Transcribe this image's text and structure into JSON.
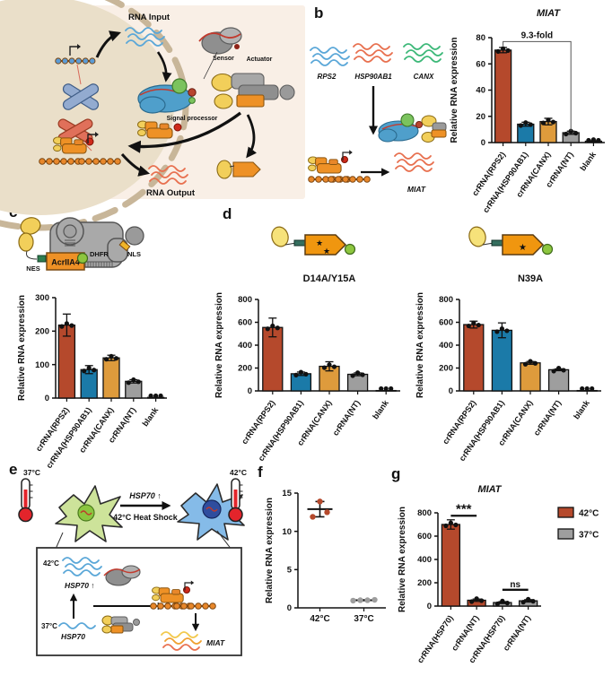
{
  "figure": {
    "panel_labels": {
      "a": "a",
      "b": "b",
      "c": "c",
      "d": "d",
      "e": "e",
      "f": "f",
      "g": "g"
    }
  },
  "colors": {
    "bar_red": "#b5492c",
    "bar_blue": "#1b7aa8",
    "bar_orange": "#de9b3c",
    "bar_gray": "#9e9e9e",
    "wave_blue": "#5aa7d8",
    "wave_red": "#e8704f",
    "wave_green": "#3cb878",
    "wave_yellow": "#f2c94c",
    "panel_a_bg": "#f9efe6",
    "machine_orange": "#ee9126",
    "blob_yellow": "#f2cf5a",
    "processor_blue": "#4f9fcb"
  },
  "panel_a": {
    "rna_input": "RNA Input",
    "sensor": "Sensor",
    "actuator": "Actuator",
    "signal_processor": "Signal processor",
    "rna_output": "RNA Output"
  },
  "panel_b_diagram": {
    "rps2": "RPS2",
    "hsp90ab1": "HSP90AB1",
    "canx": "CANX",
    "miat": "MIAT"
  },
  "panel_c_diagram": {
    "nes": "NES",
    "acriia4": "AcrIIA4",
    "dhfr": "DHFR",
    "nls": "NLS"
  },
  "panel_d_diagram": {
    "star_blue": "★",
    "star_red": "★",
    "star_green": "★"
  },
  "panel_e_diagram": {
    "temp_37": "37°C",
    "temp_42": "42°C",
    "hsp70_up": "HSP70 ↑",
    "heat_shock": "42°C Heat Shock",
    "box_42": "42°C",
    "box_37": "37°C",
    "box_hsp70_up": "HSP70 ↑",
    "box_hsp70": "HSP70",
    "miat": "MIAT"
  },
  "chart_data": [
    {
      "id": "chart-b",
      "type": "bar",
      "title": "MIAT",
      "title_italic": true,
      "ylabel": "Relative RNA expression",
      "ylim": [
        0,
        80
      ],
      "yticks": [
        0,
        20,
        40,
        60,
        80
      ],
      "categories": [
        "crRNA(RPS2)",
        "crRNA(HSP90AB1)",
        "crRNA(CANX)",
        "crRNA(NT)",
        "blank"
      ],
      "values": [
        70.5,
        14,
        16,
        7.5,
        1
      ],
      "errors": [
        2,
        1.5,
        2.5,
        1.2,
        0.4
      ],
      "bar_colors": [
        "#b5492c",
        "#1b7aa8",
        "#de9b3c",
        "#9e9e9e",
        "#9e9e9e"
      ],
      "fold_annotation": {
        "label": "9.3-fold",
        "from": 0,
        "to": 3,
        "y": 77
      }
    },
    {
      "id": "chart-c",
      "type": "bar",
      "title": "",
      "ylabel": "Relative RNA expression",
      "ylim": [
        0,
        300
      ],
      "yticks": [
        0,
        100,
        200,
        300
      ],
      "categories": [
        "crRNA(RPS2)",
        "crRNA(HSP90AB1)",
        "crRNA(CANX)",
        "crRNA(NT)",
        "blank"
      ],
      "values": [
        218,
        85,
        120,
        50,
        2
      ],
      "errors": [
        33,
        12,
        8,
        5,
        0
      ],
      "bar_colors": [
        "#b5492c",
        "#1b7aa8",
        "#de9b3c",
        "#9e9e9e",
        "#9e9e9e"
      ]
    },
    {
      "id": "chart-d1",
      "type": "bar",
      "title": "D14A/Y15A",
      "title_italic": false,
      "ylabel": "Relative RNA expression",
      "ylim": [
        0,
        800
      ],
      "yticks": [
        0,
        200,
        400,
        600,
        800
      ],
      "categories": [
        "crRNA(RPS2)",
        "crRNA(HSP90AB1)",
        "crRNA(CANX)",
        "crRNA(NT)",
        "blank"
      ],
      "values": [
        555,
        150,
        215,
        145,
        3
      ],
      "errors": [
        82,
        15,
        40,
        12,
        0
      ],
      "bar_colors": [
        "#b5492c",
        "#1b7aa8",
        "#de9b3c",
        "#9e9e9e",
        "#9e9e9e"
      ]
    },
    {
      "id": "chart-d2",
      "type": "bar",
      "title": "N39A",
      "title_italic": false,
      "ylabel": "Relative RNA expression",
      "ylim": [
        0,
        800
      ],
      "yticks": [
        0,
        200,
        400,
        600,
        800
      ],
      "categories": [
        "crRNA(RPS2)",
        "crRNA(HSP90AB1)",
        "crRNA(CANX)",
        "crRNA(NT)",
        "blank"
      ],
      "values": [
        580,
        530,
        245,
        185,
        3
      ],
      "errors": [
        30,
        65,
        12,
        8,
        0
      ],
      "bar_colors": [
        "#b5492c",
        "#1b7aa8",
        "#de9b3c",
        "#9e9e9e",
        "#9e9e9e"
      ]
    },
    {
      "id": "chart-f",
      "type": "scatter",
      "title": "",
      "ylabel": "Relative RNA expression",
      "ylim": [
        0,
        15
      ],
      "yticks": [
        0,
        5,
        10,
        15
      ],
      "categories": [
        "42°C",
        "37°C"
      ],
      "groups": [
        {
          "points": [
            11.9,
            13.9,
            12.5
          ],
          "mean": 12.9,
          "sd_low": 11.9,
          "sd_high": 13.9,
          "color": "#b5492c"
        },
        {
          "points": [
            0.95,
            1.0,
            1.0,
            1.05
          ],
          "mean": 1.0,
          "sd_low": 0.95,
          "sd_high": 1.05,
          "color": "#9e9e9e"
        }
      ]
    },
    {
      "id": "chart-g",
      "type": "bar",
      "title": "MIAT",
      "title_italic": true,
      "ylabel": "Relative RNA expression",
      "ylim": [
        0,
        800
      ],
      "yticks": [
        0,
        200,
        400,
        600,
        800
      ],
      "categories": [
        "crRNA(HSP70)",
        "crRNA(NT)",
        "crRNA(HSP70)",
        "crRNA(NT)"
      ],
      "values": [
        700,
        50,
        30,
        45
      ],
      "errors": [
        40,
        10,
        8,
        10
      ],
      "bar_colors": [
        "#b5492c",
        "#b5492c",
        "#9e9e9e",
        "#9e9e9e"
      ],
      "sig_annotations": [
        {
          "label": "***",
          "from": 0,
          "to": 1,
          "y": 775
        },
        {
          "label": "ns",
          "from": 2,
          "to": 3,
          "y": 140
        }
      ],
      "legend": [
        {
          "label": "42°C",
          "color": "#b5492c"
        },
        {
          "label": "37°C",
          "color": "#9e9e9e"
        }
      ]
    }
  ]
}
